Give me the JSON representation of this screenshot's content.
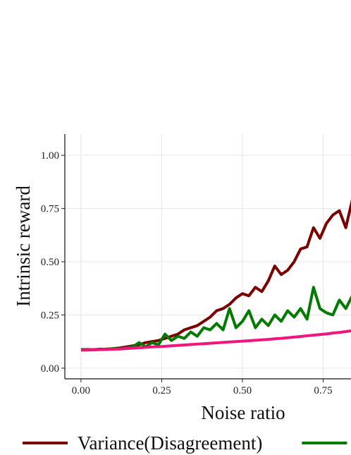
{
  "chart_data": {
    "type": "line",
    "x_label": "Noise ratio",
    "y_label": "Intrinsic reward",
    "xlim": [
      -0.05,
      1.05
    ],
    "ylim": [
      -0.05,
      1.1
    ],
    "xticks": [
      {
        "value": 0,
        "label": "0.00"
      },
      {
        "value": 0.25,
        "label": "0.25"
      },
      {
        "value": 0.5,
        "label": "0.50"
      },
      {
        "value": 0.75,
        "label": "0.75"
      }
    ],
    "yticks": [
      {
        "value": 0,
        "label": "0.00"
      },
      {
        "value": 0.25,
        "label": "0.25"
      },
      {
        "value": 0.5,
        "label": "0.50"
      },
      {
        "value": 0.75,
        "label": "0.75"
      },
      {
        "value": 1,
        "label": "1.00"
      }
    ],
    "grid": true,
    "x": [
      0,
      0.02,
      0.04,
      0.06,
      0.08,
      0.1,
      0.12,
      0.14,
      0.16,
      0.18,
      0.2,
      0.22,
      0.24,
      0.26,
      0.28,
      0.3,
      0.32,
      0.34,
      0.36,
      0.38,
      0.4,
      0.42,
      0.44,
      0.46,
      0.48,
      0.5,
      0.52,
      0.54,
      0.56,
      0.58,
      0.6,
      0.62,
      0.64,
      0.66,
      0.68,
      0.7,
      0.72,
      0.74,
      0.76,
      0.78,
      0.8,
      0.82,
      0.84
    ],
    "series": [
      {
        "name": "Variance(Disagreement)",
        "color": "#7b0000",
        "values": [
          0.085,
          0.086,
          0.087,
          0.088,
          0.09,
          0.092,
          0.095,
          0.1,
          0.105,
          0.11,
          0.12,
          0.125,
          0.13,
          0.14,
          0.15,
          0.16,
          0.18,
          0.19,
          0.2,
          0.22,
          0.24,
          0.27,
          0.28,
          0.3,
          0.33,
          0.35,
          0.34,
          0.38,
          0.36,
          0.41,
          0.48,
          0.44,
          0.46,
          0.5,
          0.56,
          0.57,
          0.66,
          0.61,
          0.68,
          0.72,
          0.74,
          0.66,
          0.79
        ]
      },
      {
        "color": "#007a00",
        "values": [
          0.088,
          0.088,
          0.087,
          0.09,
          0.088,
          0.092,
          0.09,
          0.095,
          0.1,
          0.12,
          0.1,
          0.12,
          0.11,
          0.16,
          0.13,
          0.15,
          0.14,
          0.17,
          0.15,
          0.19,
          0.18,
          0.21,
          0.18,
          0.28,
          0.19,
          0.22,
          0.27,
          0.19,
          0.23,
          0.2,
          0.25,
          0.22,
          0.27,
          0.24,
          0.28,
          0.23,
          0.38,
          0.28,
          0.26,
          0.25,
          0.32,
          0.28,
          0.34
        ]
      },
      {
        "color": "#f0147c",
        "values": [
          0.085,
          0.085,
          0.086,
          0.087,
          0.088,
          0.089,
          0.09,
          0.092,
          0.094,
          0.096,
          0.098,
          0.1,
          0.101,
          0.103,
          0.105,
          0.107,
          0.109,
          0.111,
          0.113,
          0.115,
          0.117,
          0.119,
          0.121,
          0.123,
          0.125,
          0.127,
          0.129,
          0.131,
          0.133,
          0.135,
          0.138,
          0.14,
          0.143,
          0.146,
          0.149,
          0.152,
          0.155,
          0.158,
          0.161,
          0.165,
          0.168,
          0.172,
          0.176
        ]
      }
    ]
  }
}
